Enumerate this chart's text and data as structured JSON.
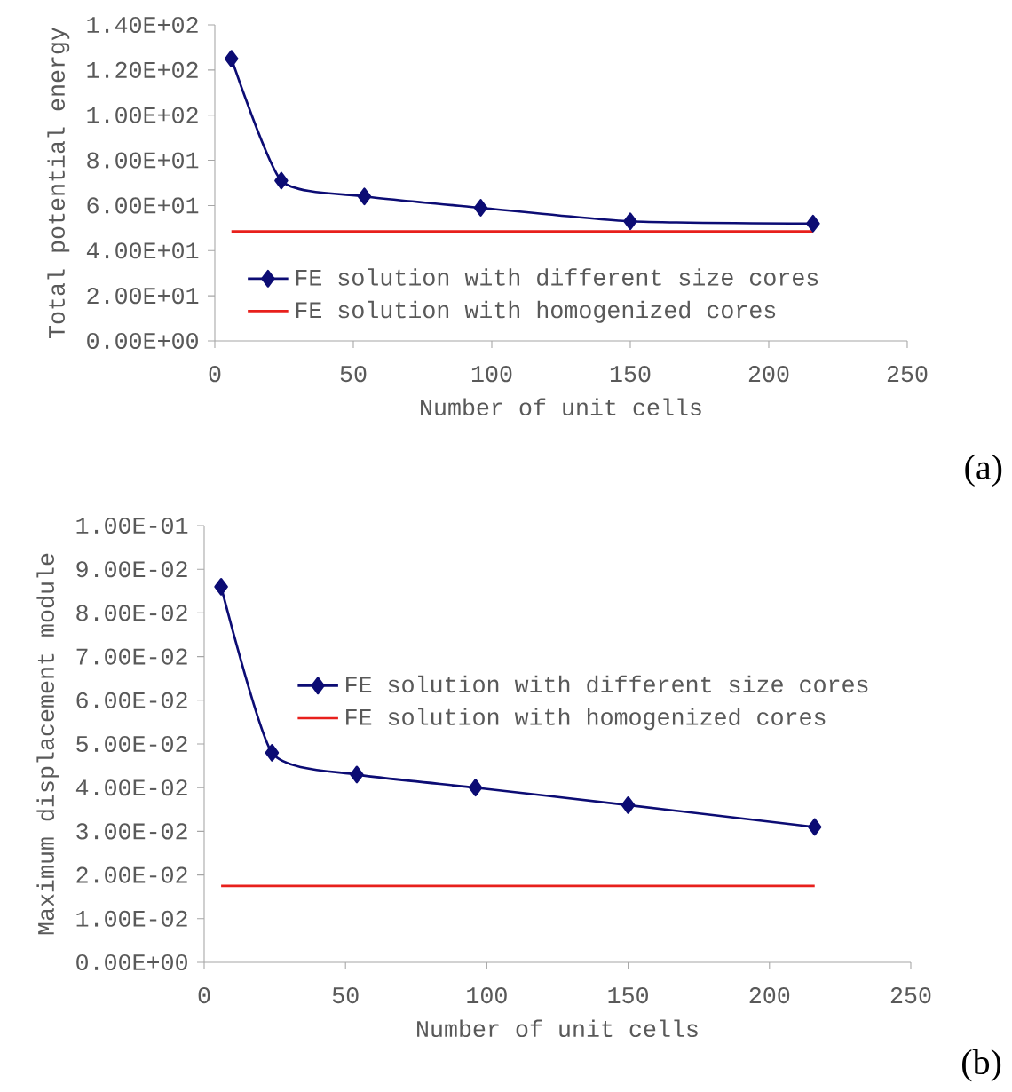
{
  "chart_data": [
    {
      "type": "line",
      "xlabel": "Number of unit cells",
      "ylabel": "Total potential energy",
      "xlim": [
        0,
        250
      ],
      "xticks": [
        0,
        50,
        100,
        150,
        200,
        250
      ],
      "ylim": [
        0,
        140
      ],
      "yticks": [
        {
          "value": 0,
          "label": "0.00E+00"
        },
        {
          "value": 20,
          "label": "2.00E+01"
        },
        {
          "value": 40,
          "label": "4.00E+01"
        },
        {
          "value": 60,
          "label": "6.00E+01"
        },
        {
          "value": 80,
          "label": "8.00E+01"
        },
        {
          "value": 100,
          "label": "1.00E+02"
        },
        {
          "value": 120,
          "label": "1.20E+02"
        },
        {
          "value": 140,
          "label": "1.40E+02"
        }
      ],
      "legend": "bottom left",
      "annotations": [
        "(a)"
      ],
      "series": [
        {
          "name": "FE solution with different size cores",
          "color": "#0c0c74",
          "marker": "diamond",
          "x": [
            6,
            24,
            54,
            96,
            150,
            216
          ],
          "values": [
            125,
            71,
            64,
            59,
            53,
            52
          ]
        },
        {
          "name": "FE solution with homogenized cores",
          "color": "#e8201c",
          "marker": "none",
          "x": [
            6,
            216
          ],
          "values": [
            48.5,
            48.5
          ]
        }
      ]
    },
    {
      "type": "line",
      "xlabel": "Number of unit cells",
      "ylabel": "Maximum displacement module",
      "xlim": [
        0,
        250
      ],
      "xticks": [
        0,
        50,
        100,
        150,
        200,
        250
      ],
      "ylim": [
        0,
        0.1
      ],
      "yticks": [
        {
          "value": 0,
          "label": "0.00E+00"
        },
        {
          "value": 0.01,
          "label": "1.00E-02"
        },
        {
          "value": 0.02,
          "label": "2.00E-02"
        },
        {
          "value": 0.03,
          "label": "3.00E-02"
        },
        {
          "value": 0.04,
          "label": "4.00E-02"
        },
        {
          "value": 0.05,
          "label": "5.00E-02"
        },
        {
          "value": 0.06,
          "label": "6.00E-02"
        },
        {
          "value": 0.07,
          "label": "7.00E-02"
        },
        {
          "value": 0.08,
          "label": "8.00E-02"
        },
        {
          "value": 0.09,
          "label": "9.00E-02"
        },
        {
          "value": 0.1,
          "label": "1.00E-01"
        }
      ],
      "legend": "top right",
      "annotations": [
        "(b)"
      ],
      "series": [
        {
          "name": "FE solution with different size cores",
          "color": "#0c0c74",
          "marker": "diamond",
          "x": [
            6,
            24,
            54,
            96,
            150,
            216
          ],
          "values": [
            0.086,
            0.048,
            0.043,
            0.04,
            0.036,
            0.031
          ]
        },
        {
          "name": "FE solution with homogenized cores",
          "color": "#e8201c",
          "marker": "none",
          "x": [
            6,
            216
          ],
          "values": [
            0.0175,
            0.0175
          ]
        }
      ]
    }
  ]
}
